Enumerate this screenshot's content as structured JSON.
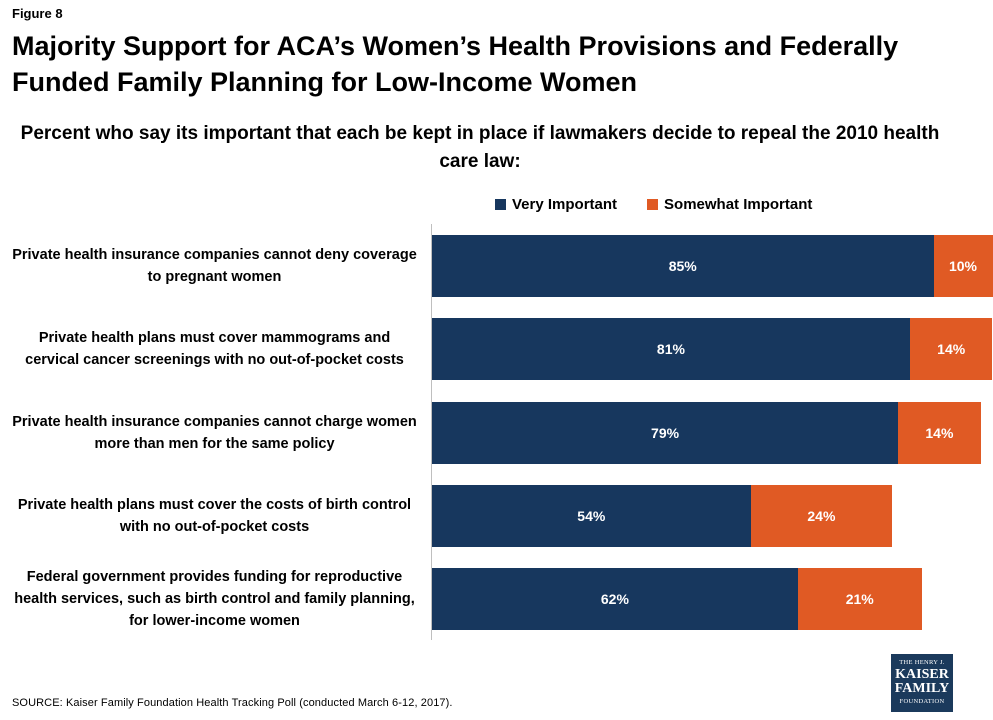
{
  "figure_label": "Figure 8",
  "colors": {
    "very": "#17375e",
    "somewhat": "#e05a24"
  },
  "logo": {
    "line1": "THE HENRY J.",
    "line2": "KAISER",
    "line3": "FAMILY",
    "line4": "FOUNDATION"
  },
  "source": "SOURCE: Kaiser Family Foundation Health Tracking Poll (conducted March 6-12, 2017).",
  "chart_data": {
    "type": "bar",
    "orientation": "horizontal",
    "stacked": true,
    "title": "Majority Support for ACA’s Women’s Health Provisions and Federally Funded Family Planning for Low-Income Women",
    "subtitle": "Percent who say its important that each be kept in place if lawmakers decide to repeal the 2010 health care law:",
    "legend_position": "top",
    "grid": false,
    "xlim": [
      0,
      100
    ],
    "categories": [
      "Private health insurance companies cannot deny coverage to pregnant women",
      "Private health plans must cover mammograms and cervical cancer screenings with no out-of-pocket costs",
      "Private health insurance companies cannot charge women more than men for the same policy",
      "Private health plans must cover the costs of birth control with no out-of-pocket costs",
      "Federal government provides funding for reproductive health services, such as birth control and family planning, for lower-income women"
    ],
    "series": [
      {
        "name": "Very Important",
        "values": [
          85,
          81,
          79,
          54,
          62
        ],
        "labels": [
          "85%",
          "81%",
          "79%",
          "54%",
          "62%"
        ]
      },
      {
        "name": "Somewhat Important",
        "values": [
          10,
          14,
          14,
          24,
          21
        ],
        "labels": [
          "10%",
          "14%",
          "14%",
          "24%",
          "21%"
        ]
      }
    ]
  }
}
